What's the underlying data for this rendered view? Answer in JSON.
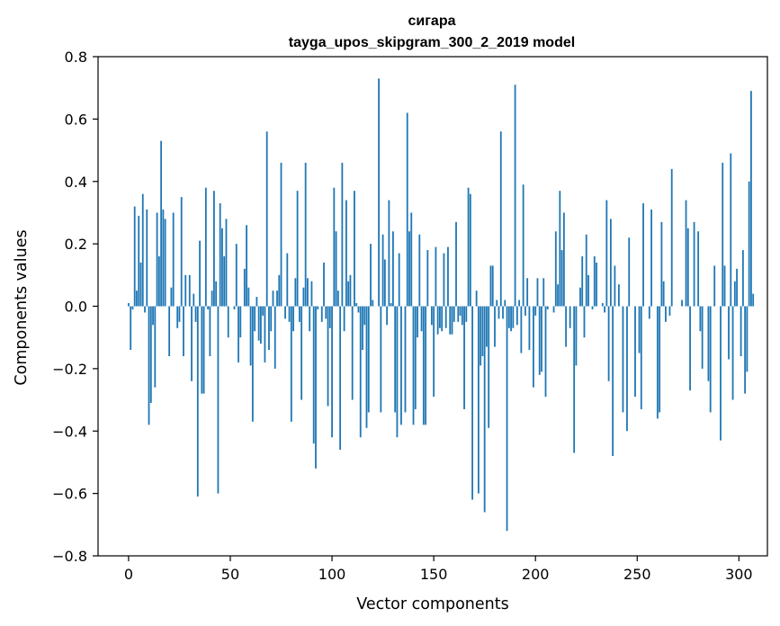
{
  "chart_data": {
    "type": "bar",
    "title": "сигара",
    "subtitle": "tayga_upos_skipgram_300_2_2019 model",
    "xlabel": "Vector components",
    "ylabel": "Components values",
    "xlim": [
      -15,
      314
    ],
    "ylim": [
      -0.8,
      0.8
    ],
    "xticks": [
      0,
      50,
      100,
      150,
      200,
      250,
      300
    ],
    "yticks": [
      -0.8,
      -0.6,
      -0.4,
      -0.2,
      0.0,
      0.2,
      0.4,
      0.6,
      0.8
    ],
    "xtick_labels": [
      "0",
      "50",
      "100",
      "150",
      "200",
      "250",
      "300"
    ],
    "ytick_labels": [
      "−0.8",
      "−0.6",
      "−0.4",
      "−0.2",
      "0.0",
      "0.2",
      "0.4",
      "0.6",
      "0.8"
    ],
    "grid": false,
    "bar_color": "#1f77b4",
    "values": [
      0.01,
      -0.14,
      -0.01,
      0.32,
      0.05,
      0.29,
      0.14,
      0.36,
      -0.02,
      0.31,
      -0.38,
      -0.31,
      -0.06,
      -0.26,
      0.3,
      0.16,
      0.53,
      0.31,
      0.28,
      0.0,
      -0.16,
      0.06,
      0.3,
      0.0,
      -0.07,
      -0.05,
      0.35,
      -0.16,
      0.1,
      0.0,
      0.1,
      -0.24,
      0.04,
      -0.05,
      -0.61,
      0.21,
      -0.28,
      -0.28,
      0.38,
      -0.01,
      -0.16,
      0.05,
      0.37,
      0.08,
      -0.6,
      0.33,
      0.25,
      0.16,
      0.28,
      -0.1,
      0.0,
      0.0,
      -0.01,
      0.2,
      -0.18,
      -0.1,
      0.0,
      0.12,
      0.26,
      0.06,
      -0.19,
      -0.37,
      -0.08,
      0.03,
      -0.11,
      -0.12,
      -0.03,
      -0.18,
      0.56,
      -0.14,
      -0.08,
      0.05,
      -0.2,
      0.05,
      0.1,
      0.46,
      0.0,
      -0.04,
      0.17,
      -0.05,
      -0.37,
      -0.08,
      0.09,
      0.37,
      -0.05,
      -0.3,
      0.06,
      0.46,
      0.09,
      -0.08,
      0.08,
      -0.44,
      -0.52,
      -0.01,
      0.0,
      -0.05,
      0.14,
      -0.04,
      -0.32,
      -0.07,
      -0.42,
      0.38,
      0.24,
      0.05,
      -0.46,
      0.46,
      -0.08,
      0.34,
      0.08,
      0.1,
      -0.3,
      0.37,
      0.01,
      -0.02,
      -0.42,
      -0.14,
      -0.06,
      -0.39,
      -0.34,
      0.2,
      0.02,
      0.0,
      0.0,
      0.73,
      -0.34,
      0.23,
      0.15,
      -0.06,
      0.34,
      0.01,
      0.24,
      -0.34,
      -0.42,
      0.17,
      -0.38,
      0.0,
      -0.34,
      0.62,
      0.24,
      0.3,
      -0.38,
      -0.33,
      -0.1,
      0.23,
      -0.08,
      -0.38,
      -0.38,
      0.18,
      0.0,
      -0.06,
      -0.29,
      0.19,
      -0.09,
      -0.07,
      -0.08,
      0.17,
      -0.07,
      0.19,
      -0.09,
      -0.09,
      -0.05,
      0.27,
      -0.05,
      -0.03,
      -0.06,
      -0.33,
      -0.05,
      0.38,
      0.36,
      -0.62,
      0.0,
      0.05,
      -0.6,
      -0.19,
      -0.16,
      -0.66,
      -0.13,
      -0.39,
      0.13,
      0.13,
      -0.13,
      0.02,
      -0.04,
      0.56,
      -0.04,
      0.02,
      -0.72,
      -0.07,
      -0.08,
      -0.07,
      0.71,
      -0.06,
      0.02,
      -0.15,
      0.39,
      -0.03,
      0.09,
      -0.14,
      0.0,
      -0.26,
      -0.03,
      0.09,
      -0.22,
      -0.21,
      0.09,
      -0.29,
      -0.01,
      0.0,
      0.0,
      -0.02,
      0.24,
      0.07,
      0.37,
      0.18,
      0.3,
      -0.13,
      0.0,
      -0.07,
      0.0,
      -0.47,
      -0.19,
      0.0,
      0.06,
      0.16,
      -0.1,
      0.23,
      0.1,
      0.0,
      -0.01,
      0.16,
      0.14,
      0.0,
      0.0,
      0.01,
      -0.02,
      0.34,
      -0.24,
      0.28,
      -0.48,
      0.13,
      0.0,
      0.07,
      0.0,
      -0.34,
      0.0,
      -0.4,
      0.22,
      0.0,
      0.0,
      -0.29,
      0.0,
      -0.15,
      -0.33,
      0.33,
      0.0,
      0.0,
      -0.04,
      0.31,
      0.0,
      0.0,
      -0.36,
      -0.34,
      0.27,
      0.08,
      -0.05,
      0.0,
      -0.03,
      0.44,
      0.0,
      0.0,
      0.0,
      0.0,
      0.02,
      0.0,
      0.34,
      0.25,
      -0.27,
      0.0,
      0.27,
      0.0,
      0.24,
      -0.08,
      -0.2,
      0.0,
      0.0,
      -0.24,
      -0.34,
      0.0,
      0.13,
      0.0,
      0.0,
      -0.43,
      0.46,
      0.13,
      0.0,
      -0.17,
      0.49,
      -0.3,
      0.08,
      0.12,
      0.0,
      -0.16,
      0.18,
      -0.28,
      -0.21,
      0.4,
      0.69,
      0.04
    ]
  }
}
